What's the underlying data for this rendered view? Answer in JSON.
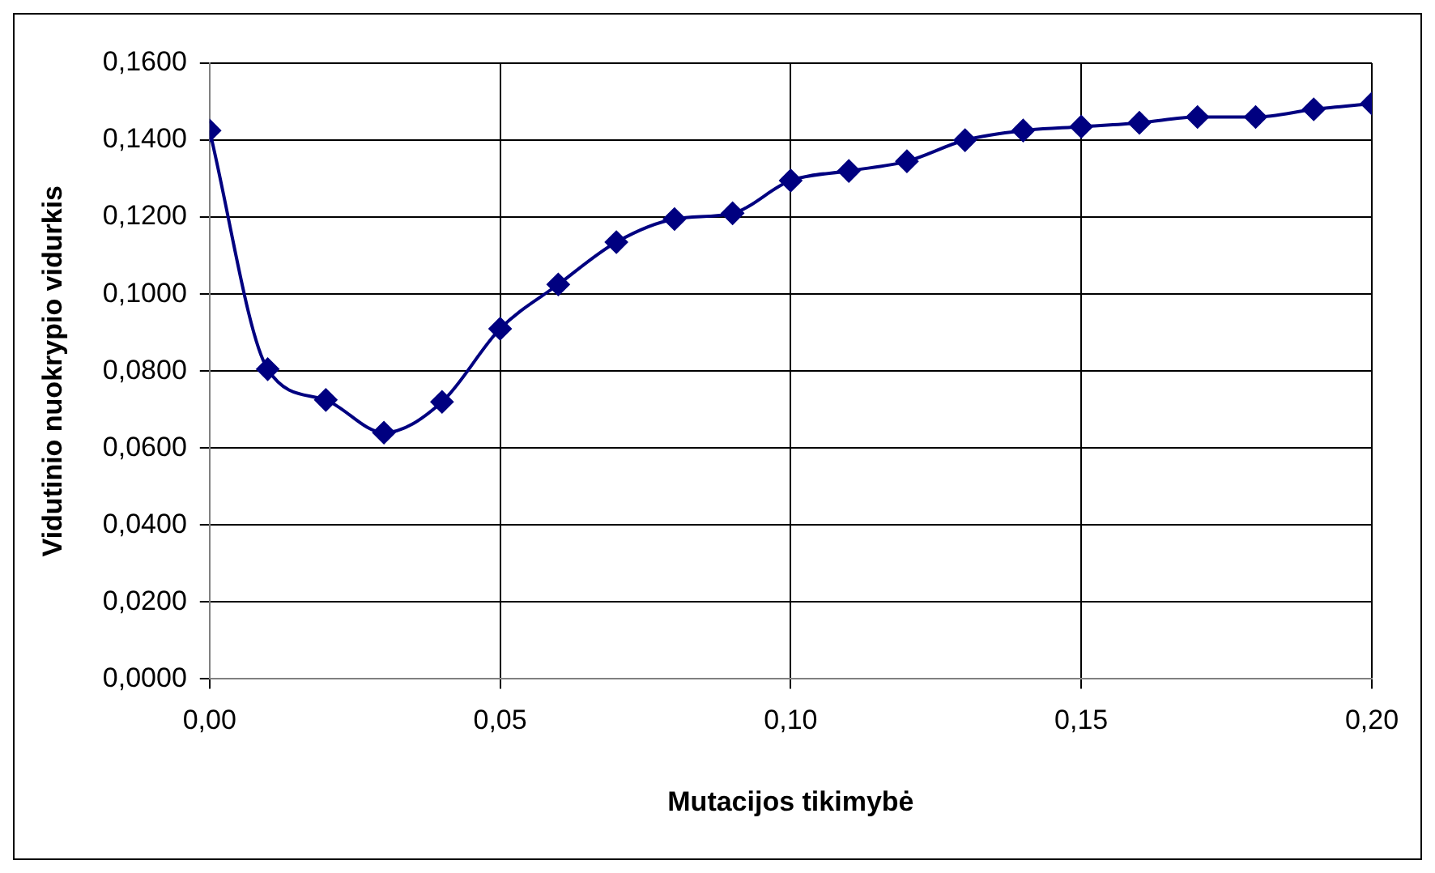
{
  "chart_data": {
    "type": "line",
    "xlabel": "Mutacijos tikimybė",
    "ylabel": "Vidutinio nuokrypio vidurkis",
    "x": [
      0,
      0.01,
      0.02,
      0.03,
      0.04,
      0.05,
      0.06,
      0.07,
      0.08,
      0.09,
      0.1,
      0.11,
      0.12,
      0.13,
      0.14,
      0.15,
      0.16,
      0.17,
      0.18,
      0.19,
      0.2
    ],
    "series": [
      {
        "color": "#000080",
        "values": [
          0.1425,
          0.0805,
          0.0725,
          0.064,
          0.072,
          0.091,
          0.1025,
          0.1135,
          0.1195,
          0.121,
          0.1295,
          0.132,
          0.1345,
          0.14,
          0.1425,
          0.1435,
          0.1445,
          0.146,
          0.146,
          0.148,
          0.1495
        ]
      }
    ],
    "xlim": [
      0,
      0.2
    ],
    "xticks": [
      {
        "value": 0,
        "label": "0,00"
      },
      {
        "value": 0.05,
        "label": "0,05"
      },
      {
        "value": 0.1,
        "label": "0,10"
      },
      {
        "value": 0.15,
        "label": "0,15"
      },
      {
        "value": 0.2,
        "label": "0,20"
      }
    ],
    "ylim": [
      0,
      0.16
    ],
    "yticks": [
      {
        "value": 0,
        "label": "0,0000"
      },
      {
        "value": 0.02,
        "label": "0,0200"
      },
      {
        "value": 0.04,
        "label": "0,0400"
      },
      {
        "value": 0.06,
        "label": "0,0600"
      },
      {
        "value": 0.08,
        "label": "0,0800"
      },
      {
        "value": 0.1,
        "label": "0,1000"
      },
      {
        "value": 0.12,
        "label": "0,1200"
      },
      {
        "value": 0.14,
        "label": "0,1400"
      },
      {
        "value": 0.16,
        "label": "0,1600"
      }
    ],
    "grid": true,
    "legend": false,
    "marker": "diamond",
    "line_style": "solid"
  }
}
